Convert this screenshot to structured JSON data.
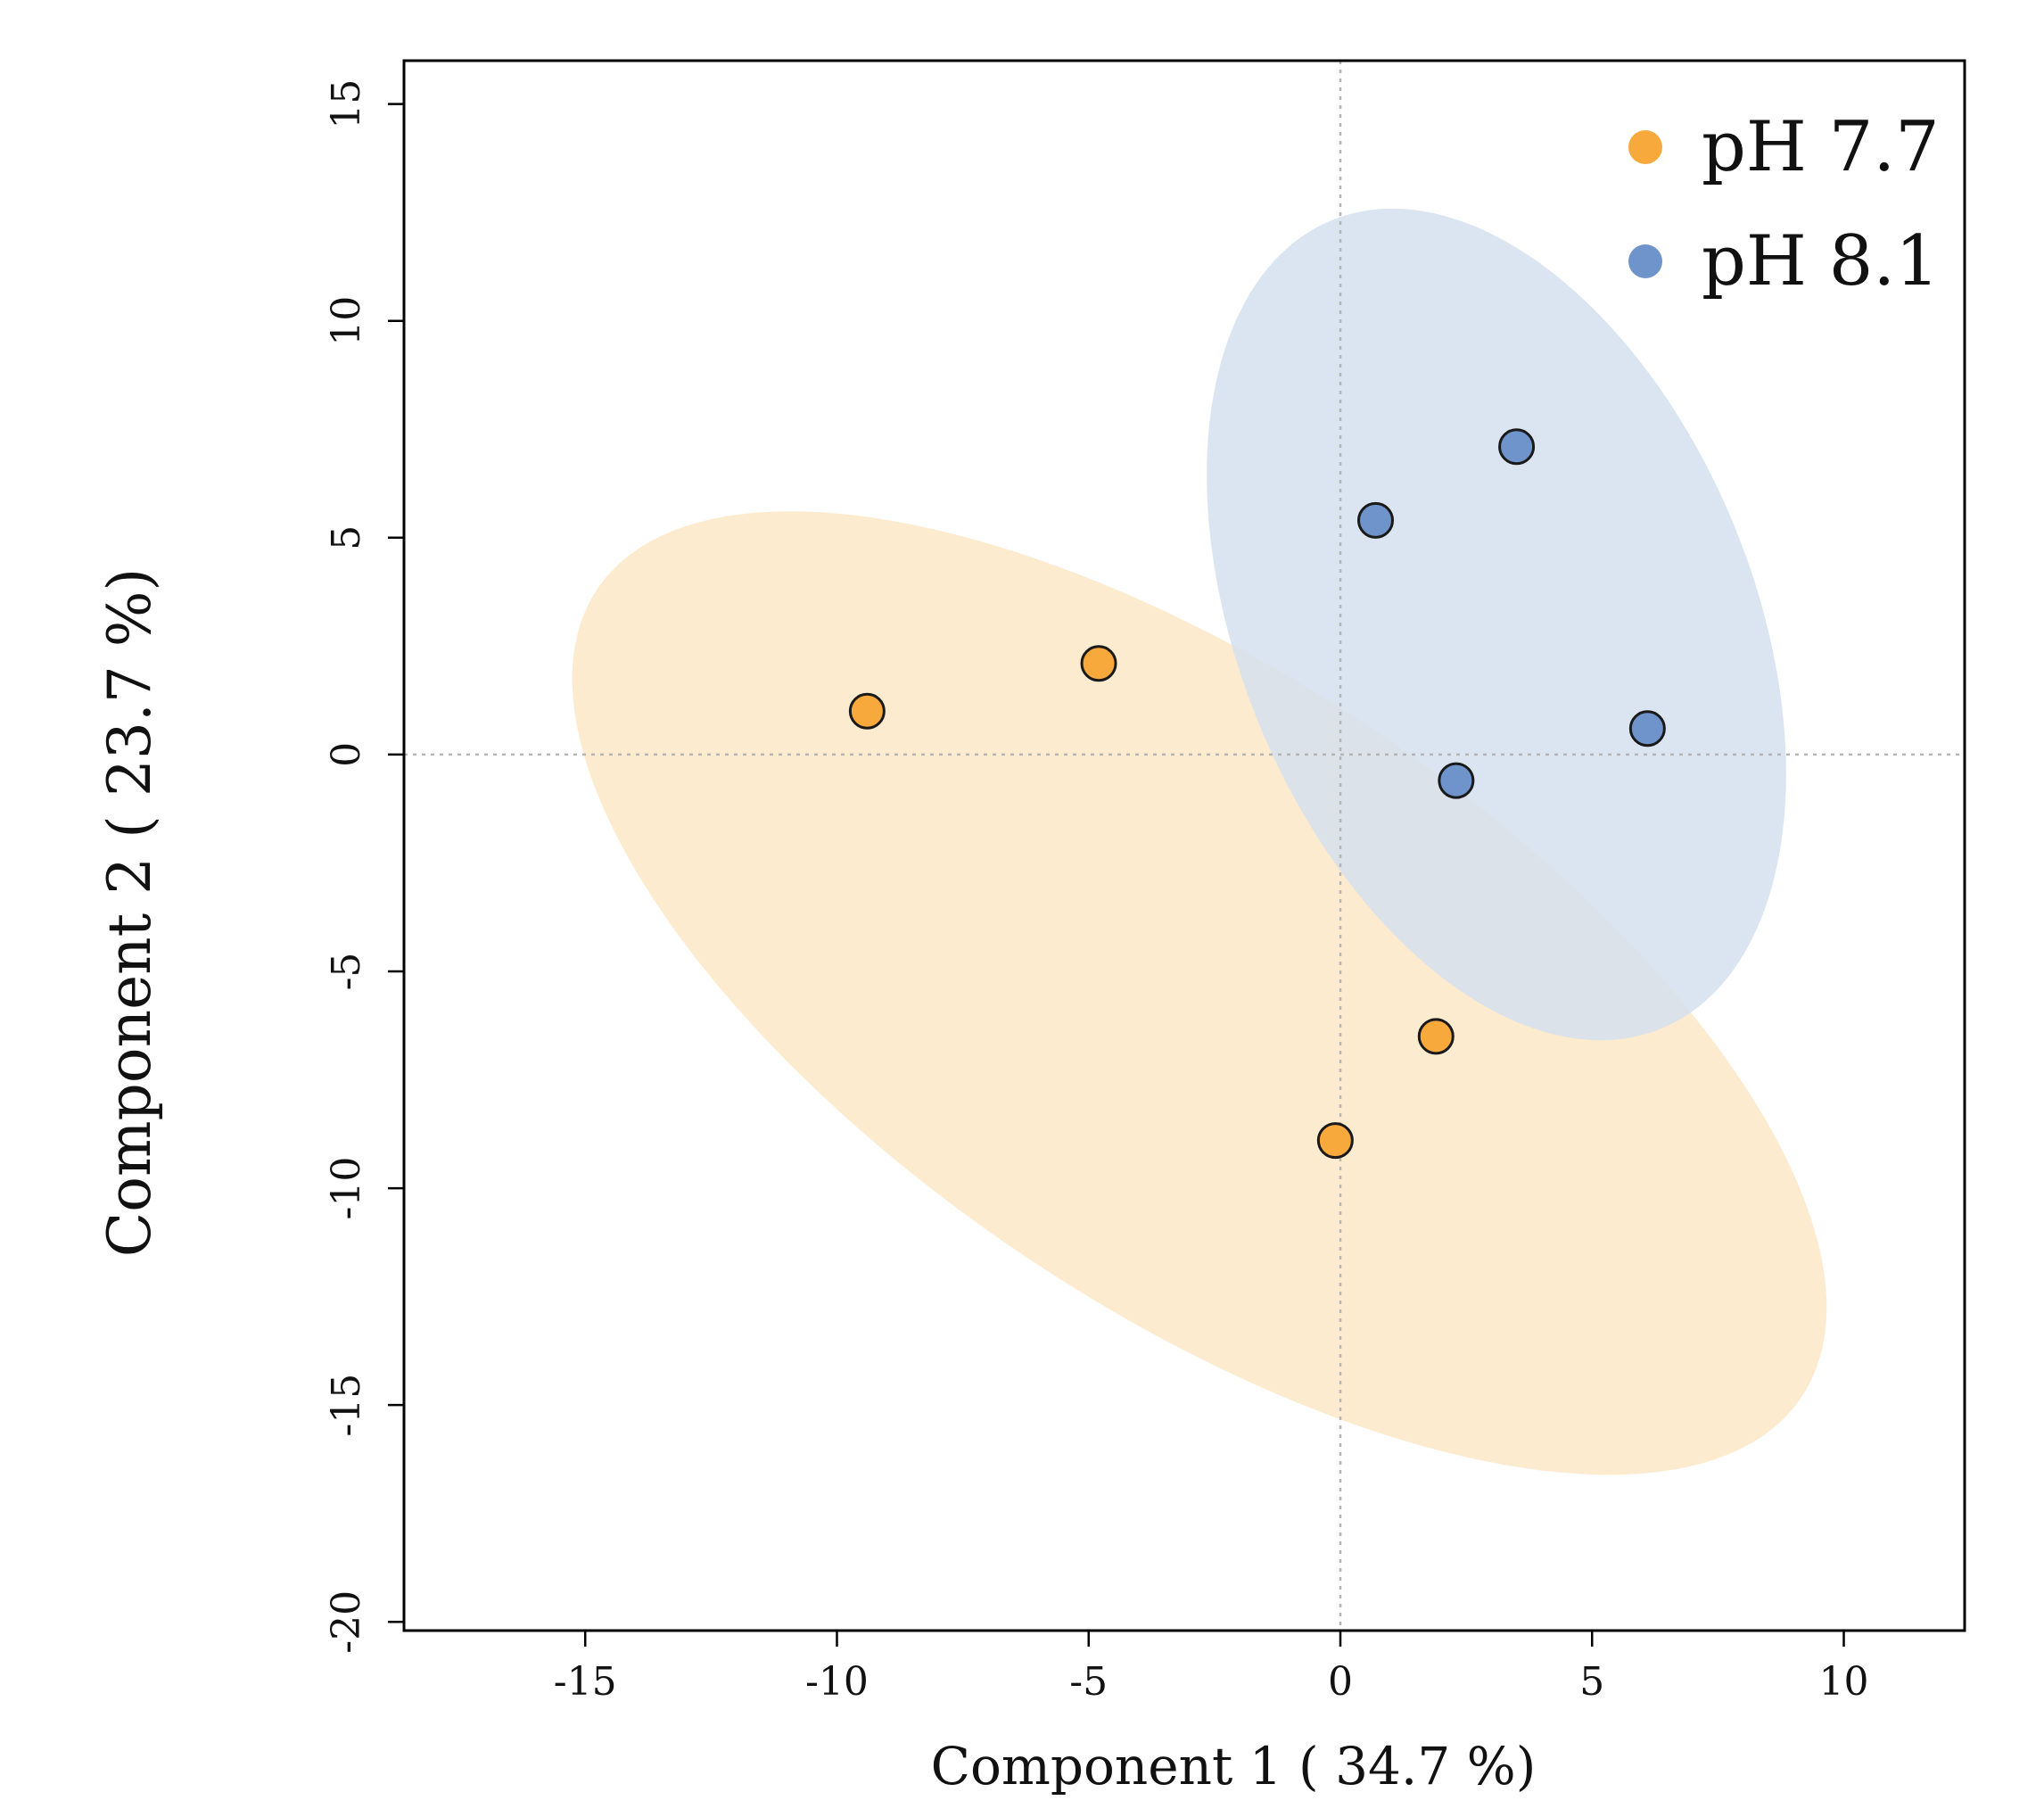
{
  "chart_data": {
    "type": "scatter",
    "title": "",
    "xlabel": "Component 1 ( 34.7 %)",
    "ylabel": "Component 2 ( 23.7 %)",
    "xlim": [
      -18.6,
      12.4
    ],
    "ylim": [
      -20.2,
      16.0
    ],
    "xticks": [
      -15,
      -10,
      -5,
      0,
      5,
      10
    ],
    "yticks": [
      -20,
      -15,
      -10,
      -5,
      0,
      5,
      10,
      15
    ],
    "xtick_labels": [
      "-15",
      "-10",
      "-5",
      "0",
      "5",
      "10"
    ],
    "ytick_labels": [
      "-20",
      "-15",
      "-10",
      "-5",
      "0",
      "5",
      "10",
      "15"
    ],
    "grid": false,
    "reference_lines": {
      "x": 0,
      "y": 0,
      "style": "dotted"
    },
    "legend_position": "top-right",
    "series": [
      {
        "name": "pH 7.7",
        "color": "#F7A93C",
        "ellipse_color": "#FDEBD0",
        "points": [
          {
            "x": -9.4,
            "y": 1.0
          },
          {
            "x": -4.8,
            "y": 2.1
          },
          {
            "x": 1.9,
            "y": -6.5
          },
          {
            "x": -0.1,
            "y": -8.9
          }
        ],
        "ellipse": {
          "cx": -2.8,
          "cy": -5.5,
          "rx": 15.2,
          "ry": 6.9,
          "angle_deg": -40
        }
      },
      {
        "name": "pH 8.1",
        "color": "#6E94CB",
        "ellipse_color": "#D5E0EE",
        "points": [
          {
            "x": 0.7,
            "y": 5.4
          },
          {
            "x": 3.5,
            "y": 7.1
          },
          {
            "x": 6.1,
            "y": 0.6
          },
          {
            "x": 2.3,
            "y": -0.6
          }
        ],
        "ellipse": {
          "cx": 3.1,
          "cy": 3.0,
          "rx": 9.9,
          "ry": 5.2,
          "angle_deg": -73
        }
      }
    ]
  }
}
